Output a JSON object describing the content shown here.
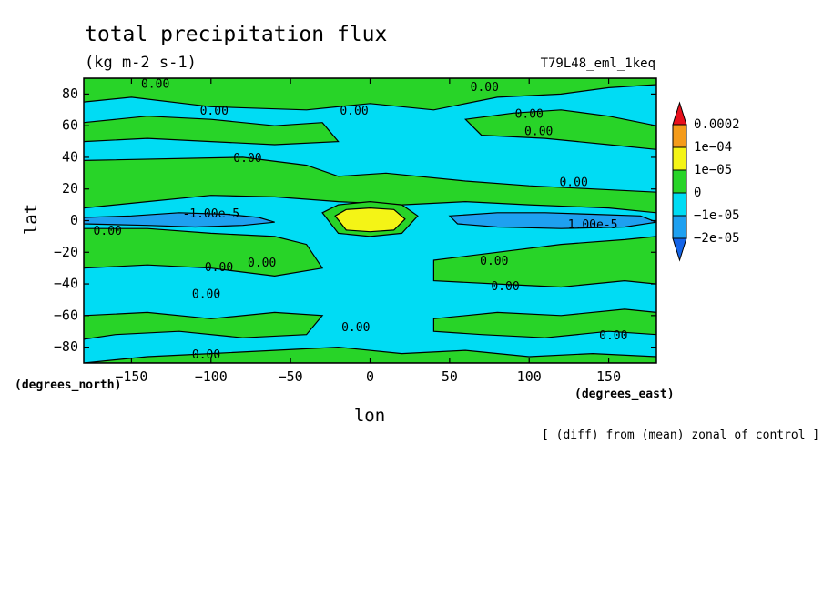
{
  "chart_data": {
    "type": "contour",
    "title": "total precipitation flux",
    "units": "(kg m-2 s-1)",
    "run_label": "T79L48_eml_1keq",
    "xlabel": "lon",
    "ylabel": "lat",
    "x_unit_label": "(degrees_east)",
    "y_unit_label": "(degrees_north)",
    "note": "[ (diff) from (mean) zonal of control ]",
    "xlim": [
      -180,
      180
    ],
    "ylim": [
      -90,
      90
    ],
    "x_ticks": [
      -150,
      -100,
      -50,
      0,
      50,
      100,
      150
    ],
    "y_ticks": [
      80,
      60,
      40,
      20,
      0,
      -20,
      -40,
      -60,
      -80
    ],
    "legend": {
      "levels": [
        "0.0002",
        "1e-04",
        "1e-05",
        "0",
        "-1e-05",
        "-2e-05"
      ],
      "colors": {
        "above_max": "#e8101c",
        "band_1e-04_to_0.0002": "#f49b1a",
        "band_1e-05_to_1e-04": "#f4f416",
        "band_0_to_1e-05": "#28d428",
        "band_-1e-05_to_0": "#00dcf4",
        "band_-2e-05_to_-1e-05": "#1ea0f0",
        "below_min": "#1464e8"
      }
    },
    "background_band": "band_-1e-05_to_0",
    "regions": [
      {
        "band": "band_0_to_1e-05",
        "lon": [
          -180,
          -80,
          -40,
          -20,
          10,
          60,
          100,
          140,
          180,
          180,
          150,
          100,
          60,
          20,
          -20,
          -60,
          -100,
          -140,
          -180
        ],
        "lat": [
          38,
          40,
          35,
          28,
          30,
          25,
          22,
          20,
          18,
          5,
          8,
          10,
          12,
          10,
          12,
          15,
          16,
          12,
          8
        ]
      },
      {
        "band": "band_0_to_1e-05",
        "lon": [
          -180,
          -140,
          -100,
          -60,
          -40,
          -30,
          -60,
          -100,
          -140,
          -180
        ],
        "lat": [
          -5,
          -5,
          -8,
          -10,
          -15,
          -30,
          -35,
          -30,
          -28,
          -30
        ]
      },
      {
        "band": "band_0_to_1e-05",
        "lon": [
          40,
          80,
          120,
          160,
          180,
          180,
          160,
          120,
          80,
          40
        ],
        "lat": [
          -25,
          -20,
          -15,
          -12,
          -10,
          -40,
          -38,
          -42,
          -40,
          -38
        ]
      },
      {
        "band": "band_0_to_1e-05",
        "lon": [
          -180,
          -150,
          -100,
          -40,
          0,
          40,
          80,
          120,
          150,
          180,
          180,
          -180
        ],
        "lat": [
          75,
          78,
          72,
          70,
          74,
          70,
          78,
          80,
          84,
          86,
          90,
          90
        ]
      },
      {
        "band": "band_0_to_1e-05",
        "lon": [
          -180,
          -140,
          -100,
          -60,
          -30,
          -20,
          -60,
          -100,
          -140,
          -180
        ],
        "lat": [
          62,
          66,
          64,
          60,
          62,
          50,
          48,
          50,
          52,
          50
        ]
      },
      {
        "band": "band_0_to_1e-05",
        "lon": [
          60,
          90,
          120,
          150,
          180,
          180,
          150,
          110,
          70
        ],
        "lat": [
          64,
          68,
          70,
          66,
          60,
          45,
          48,
          52,
          54
        ]
      },
      {
        "band": "band_0_to_1e-05",
        "lon": [
          -180,
          -140,
          -100,
          -60,
          -20,
          20,
          60,
          100,
          140,
          180,
          180,
          -180
        ],
        "lat": [
          -90,
          -86,
          -84,
          -82,
          -80,
          -84,
          -82,
          -86,
          -84,
          -86,
          -90,
          -90
        ]
      },
      {
        "band": "band_0_to_1e-05",
        "lon": [
          -180,
          -140,
          -100,
          -60,
          -30,
          -40,
          -80,
          -120,
          -160,
          -180
        ],
        "lat": [
          -60,
          -58,
          -62,
          -58,
          -60,
          -72,
          -74,
          -70,
          -72,
          -75
        ]
      },
      {
        "band": "band_0_to_1e-05",
        "lon": [
          40,
          80,
          120,
          160,
          180,
          180,
          150,
          110,
          70,
          40
        ],
        "lat": [
          -62,
          -58,
          -60,
          -56,
          -58,
          -72,
          -70,
          -74,
          -72,
          -70
        ]
      },
      {
        "band": "band_0_to_1e-05",
        "lon": [
          -30,
          -20,
          0,
          20,
          30,
          20,
          0,
          -20
        ],
        "lat": [
          5,
          10,
          12,
          10,
          3,
          -8,
          -10,
          -8
        ]
      },
      {
        "band": "band_1e-05_to_1e-04",
        "lon": [
          -22,
          -15,
          0,
          15,
          22,
          15,
          0,
          -15
        ],
        "lat": [
          3,
          7,
          8,
          7,
          1,
          -6,
          -7,
          -6
        ]
      },
      {
        "band": "band_-2e-05_to_-1e-05",
        "lon": [
          -180,
          -150,
          -120,
          -90,
          -70,
          -60,
          -80,
          -110,
          -140,
          -180
        ],
        "lat": [
          2,
          3,
          5,
          4,
          2,
          -1,
          -3,
          -4,
          -3,
          -2
        ]
      },
      {
        "band": "band_-2e-05_to_-1e-05",
        "lon": [
          50,
          80,
          110,
          140,
          170,
          180,
          160,
          120,
          80,
          55
        ],
        "lat": [
          3,
          5,
          5,
          4,
          3,
          -1,
          -4,
          -5,
          -4,
          -2
        ]
      }
    ],
    "contour_labels": [
      {
        "text": "0.00",
        "lon": -135,
        "lat": 86
      },
      {
        "text": "0.00",
        "lon": 72,
        "lat": 84
      },
      {
        "text": "0.00",
        "lon": -98,
        "lat": 69
      },
      {
        "text": "0.00",
        "lon": -10,
        "lat": 69
      },
      {
        "text": "0.00",
        "lon": 100,
        "lat": 67
      },
      {
        "text": "0.00",
        "lon": 106,
        "lat": 56
      },
      {
        "text": "0.00",
        "lon": -77,
        "lat": 39
      },
      {
        "text": "0.00",
        "lon": 128,
        "lat": 24
      },
      {
        "text": "-1.00e-5",
        "lon": -100,
        "lat": 4
      },
      {
        "text": "1.00e-5",
        "lon": 140,
        "lat": -3
      },
      {
        "text": "0.00",
        "lon": -165,
        "lat": -7
      },
      {
        "text": "0.00",
        "lon": -95,
        "lat": -30
      },
      {
        "text": "0.00",
        "lon": -68,
        "lat": -27
      },
      {
        "text": "0.00",
        "lon": 78,
        "lat": -26
      },
      {
        "text": "0.00",
        "lon": 85,
        "lat": -42
      },
      {
        "text": "0.00",
        "lon": -103,
        "lat": -47
      },
      {
        "text": "0.00",
        "lon": -9,
        "lat": -68
      },
      {
        "text": "0.00",
        "lon": 153,
        "lat": -73
      },
      {
        "text": "0.00",
        "lon": -103,
        "lat": -85
      }
    ]
  }
}
